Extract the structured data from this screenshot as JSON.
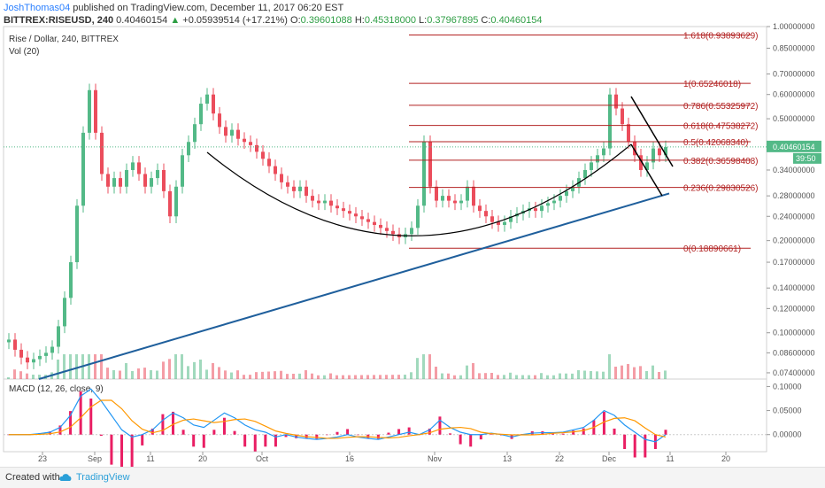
{
  "header": {
    "user": "JoshThomas04",
    "published_text": "published on TradingView.com, December 11, 2017 06:20 EST",
    "symbol": "BITTREX:RISEUSD, 240",
    "last": "0.40460154",
    "change_arrow": "▲",
    "change": "+0.05939514 (+17.21%)",
    "o_label": "O:",
    "o": "0.39601088",
    "h_label": "H:",
    "h": "0.45318000",
    "l_label": "L:",
    "l": "0.37967895",
    "c_label": "C:",
    "c": "0.40460154"
  },
  "legend": {
    "title": "Rise / Dollar, 240, BITTREX",
    "vol": "Vol (20)",
    "macd": "MACD (12, 26, close, 9)"
  },
  "footer": {
    "created_with": "Created with",
    "brand": "TradingView"
  },
  "colors": {
    "up": "#53b987",
    "down": "#eb4d5c",
    "fib": "#b22222",
    "trend": "#1f5f9c",
    "curve": "#000000",
    "macd": "#2196f3",
    "signal": "#ff9800",
    "hist": "#e91e63",
    "axis": "#555555"
  },
  "chart_data": {
    "type": "candlestick",
    "scale": "log",
    "ylim": [
      0.0706,
      1.0
    ],
    "price_ticks": [
      "1.00000000",
      "0.85000000",
      "0.70000000",
      "0.60000000",
      "0.50000000",
      "0.40000000",
      "0.34000000",
      "0.28000000",
      "0.24000000",
      "0.20000000",
      "0.17000000",
      "0.14000000",
      "0.12000000",
      "0.10000000",
      "0.08600000",
      "0.07400000"
    ],
    "last_price_label": "0.40460154",
    "countdown_label": "39:50",
    "x_ticks": [
      "23",
      "Sep",
      "11",
      "20",
      "Oct",
      "16",
      "Nov",
      "13",
      "22",
      "Dec",
      "11",
      "20"
    ],
    "fib_levels": [
      {
        "label": "1.618(0.93893629)",
        "value": 0.93893629
      },
      {
        "label": "1(0.65246018)",
        "value": 0.65246018
      },
      {
        "label": "0.786(0.55325972)",
        "value": 0.55325972
      },
      {
        "label": "0.618(0.47538272)",
        "value": 0.47538272
      },
      {
        "label": "0.5(0.42068340)",
        "value": 0.4206834
      },
      {
        "label": "0.382(0.36598408)",
        "value": 0.36598408
      },
      {
        "label": "0.236(0.29830526)",
        "value": 0.29830526
      },
      {
        "label": "0(0.18890661)",
        "value": 0.18890661
      }
    ],
    "close_series": [
      0.095,
      0.088,
      0.083,
      0.08,
      0.082,
      0.084,
      0.086,
      0.09,
      0.105,
      0.13,
      0.17,
      0.26,
      0.45,
      0.62,
      0.45,
      0.33,
      0.3,
      0.32,
      0.3,
      0.34,
      0.36,
      0.33,
      0.3,
      0.32,
      0.34,
      0.29,
      0.24,
      0.3,
      0.38,
      0.42,
      0.48,
      0.56,
      0.6,
      0.52,
      0.47,
      0.44,
      0.46,
      0.43,
      0.42,
      0.41,
      0.39,
      0.37,
      0.35,
      0.33,
      0.31,
      0.3,
      0.29,
      0.3,
      0.28,
      0.27,
      0.265,
      0.27,
      0.26,
      0.255,
      0.25,
      0.245,
      0.24,
      0.235,
      0.23,
      0.225,
      0.22,
      0.215,
      0.21,
      0.205,
      0.21,
      0.22,
      0.26,
      0.42,
      0.3,
      0.27,
      0.28,
      0.27,
      0.265,
      0.27,
      0.3,
      0.26,
      0.25,
      0.24,
      0.23,
      0.225,
      0.23,
      0.24,
      0.245,
      0.25,
      0.255,
      0.25,
      0.26,
      0.265,
      0.27,
      0.28,
      0.29,
      0.3,
      0.32,
      0.34,
      0.36,
      0.38,
      0.4,
      0.6,
      0.54,
      0.48,
      0.42,
      0.38,
      0.34,
      0.36,
      0.4,
      0.38,
      0.404
    ],
    "macd_ylim": [
      -0.03,
      0.11
    ],
    "macd_ticks": [
      "0.10000",
      "0.05000",
      "0.00000"
    ],
    "macd_series": [
      0.0,
      0.0,
      0.0,
      0.002,
      0.005,
      0.015,
      0.04,
      0.08,
      0.095,
      0.07,
      0.04,
      0.01,
      -0.005,
      0.0,
      0.01,
      0.03,
      0.045,
      0.035,
      0.02,
      0.015,
      0.03,
      0.045,
      0.035,
      0.02,
      0.01,
      0.005,
      -0.005,
      0.0,
      -0.005,
      -0.008,
      -0.01,
      -0.008,
      -0.005,
      0.0,
      -0.005,
      -0.008,
      -0.01,
      -0.005,
      0.0,
      0.005,
      0.0,
      0.01,
      0.03,
      0.015,
      0.005,
      0.0,
      0.0,
      0.003,
      0.0,
      -0.005,
      0.0,
      0.003,
      0.004,
      0.004,
      0.005,
      0.01,
      0.015,
      0.03,
      0.05,
      0.04,
      0.02,
      0.005,
      -0.01,
      -0.015,
      0.0
    ]
  }
}
